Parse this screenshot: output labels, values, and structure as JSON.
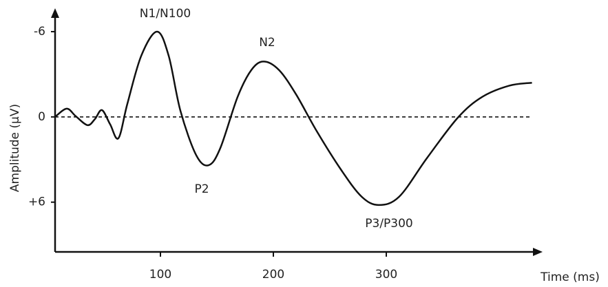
{
  "chart_data": {
    "type": "line",
    "x_label": "Time (ms)",
    "y_label": "Amplitude (µV)",
    "xlim": [
      6.7,
      436.6
    ],
    "xticks": [
      100,
      200,
      300
    ],
    "ylim": [
      -7.5,
      9.5
    ],
    "y_inverted": true,
    "yticks": [
      -6,
      0,
      {
        "value": 6,
        "label": "+6"
      }
    ],
    "reference_lines": [
      0
    ],
    "annotations": [
      "N1/N100",
      "N2",
      "P2",
      "P3/P300"
    ],
    "series": [
      {
        "color": "#111111",
        "x": [
          6.7,
          17,
          25,
          35.4,
          42,
          48.2,
          55.5,
          62.8,
          70.7,
          83,
          97,
          107.3,
          117.7,
          131.7,
          142.7,
          153,
          168.3,
          180.5,
          191.5,
          205,
          220,
          238.4,
          259.8,
          278,
          293.3,
          311.6,
          336,
          363.4,
          384.8,
          409,
          429
        ],
        "values": [
          0,
          -0.58,
          -0.05,
          0.58,
          0.15,
          -0.48,
          0.53,
          1.5,
          -0.92,
          -4.3,
          -6,
          -4.3,
          -0.43,
          2.7,
          3.4,
          2.2,
          -1.4,
          -3.3,
          -3.9,
          -3.3,
          -1.6,
          1.0,
          3.7,
          5.6,
          6.2,
          5.6,
          2.9,
          0.05,
          -1.4,
          -2.2,
          -2.4
        ]
      }
    ]
  }
}
